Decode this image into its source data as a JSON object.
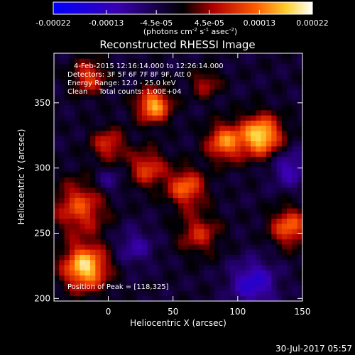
{
  "chart_data": {
    "type": "heatmap",
    "title": "Reconstructed RHESSI Image",
    "xlabel": "Heliocentric X (arcsec)",
    "ylabel": "Heliocentric Y (arcsec)",
    "xlim": [
      -42,
      150
    ],
    "ylim": [
      198,
      388
    ],
    "x_ticks": [
      0,
      50,
      100,
      150
    ],
    "y_ticks": [
      200,
      250,
      300,
      350
    ],
    "grid": false,
    "colorbar": {
      "range": [
        -0.00022,
        0.00022
      ],
      "tick_values": [
        -0.00022,
        -0.00013,
        -4.5e-05,
        4.5e-05,
        0.00013,
        0.00022
      ],
      "tick_labels": [
        "-0.00022",
        "-0.00013",
        "-4.5e-05",
        "4.5e-05",
        "0.00013",
        "0.00022"
      ],
      "units_html": "(photons cm<tspan font-size='7' dy='-4'>-2</tspan><tspan dy='4'> s</tspan><tspan font-size='7' dy='-4'>-1</tspan><tspan dy='4'> asec</tspan><tspan font-size='7' dy='-4'>-2</tspan><tspan dy='4'>)</tspan>",
      "colors": [
        "#0000ff",
        "#000000",
        "#ff0000",
        "#ffffff"
      ]
    },
    "annotations": [
      "4-Feb-2015 12:16:14.000 to 12:26:14.000",
      "Detectors: 3F 5F 6F 7F 8F 9F, Att 0",
      "Energy Range: 12.0 - 25.0 keV",
      "Clean     Total counts: 1.00E+04"
    ],
    "peak_label": "Position of Peak = [118,325]",
    "peak": [
      118,
      325
    ],
    "sources": [
      {
        "x": -18,
        "y": 224,
        "sigma": 12,
        "amp": 0.00022
      },
      {
        "x": -22,
        "y": 270,
        "sigma": 14,
        "amp": 0.00013
      },
      {
        "x": 35,
        "y": 348,
        "sigma": 9,
        "amp": 0.00019
      },
      {
        "x": 118,
        "y": 325,
        "sigma": 11,
        "amp": 0.00022
      },
      {
        "x": 90,
        "y": 320,
        "sigma": 10,
        "amp": 0.00016
      },
      {
        "x": 60,
        "y": 285,
        "sigma": 10,
        "amp": 0.00015
      },
      {
        "x": 30,
        "y": 300,
        "sigma": 10,
        "amp": 0.00012
      },
      {
        "x": 0,
        "y": 318,
        "sigma": 9,
        "amp": 0.00011
      },
      {
        "x": 140,
        "y": 255,
        "sigma": 10,
        "amp": 0.00015
      },
      {
        "x": 70,
        "y": 250,
        "sigma": 11,
        "amp": 0.0001
      },
      {
        "x": -15,
        "y": 370,
        "sigma": 9,
        "amp": 0.00012
      },
      {
        "x": 75,
        "y": 365,
        "sigma": 8,
        "amp": 8e-05
      },
      {
        "x": 112,
        "y": 212,
        "sigma": 12,
        "amp": -0.00012
      },
      {
        "x": 140,
        "y": 300,
        "sigma": 10,
        "amp": -9e-05
      },
      {
        "x": 20,
        "y": 240,
        "sigma": 10,
        "amp": -7e-05
      },
      {
        "x": 0,
        "y": 290,
        "sigma": 8,
        "amp": -6e-05
      }
    ]
  },
  "footer": {
    "timestamp": "30-Jul-2017 05:57"
  }
}
